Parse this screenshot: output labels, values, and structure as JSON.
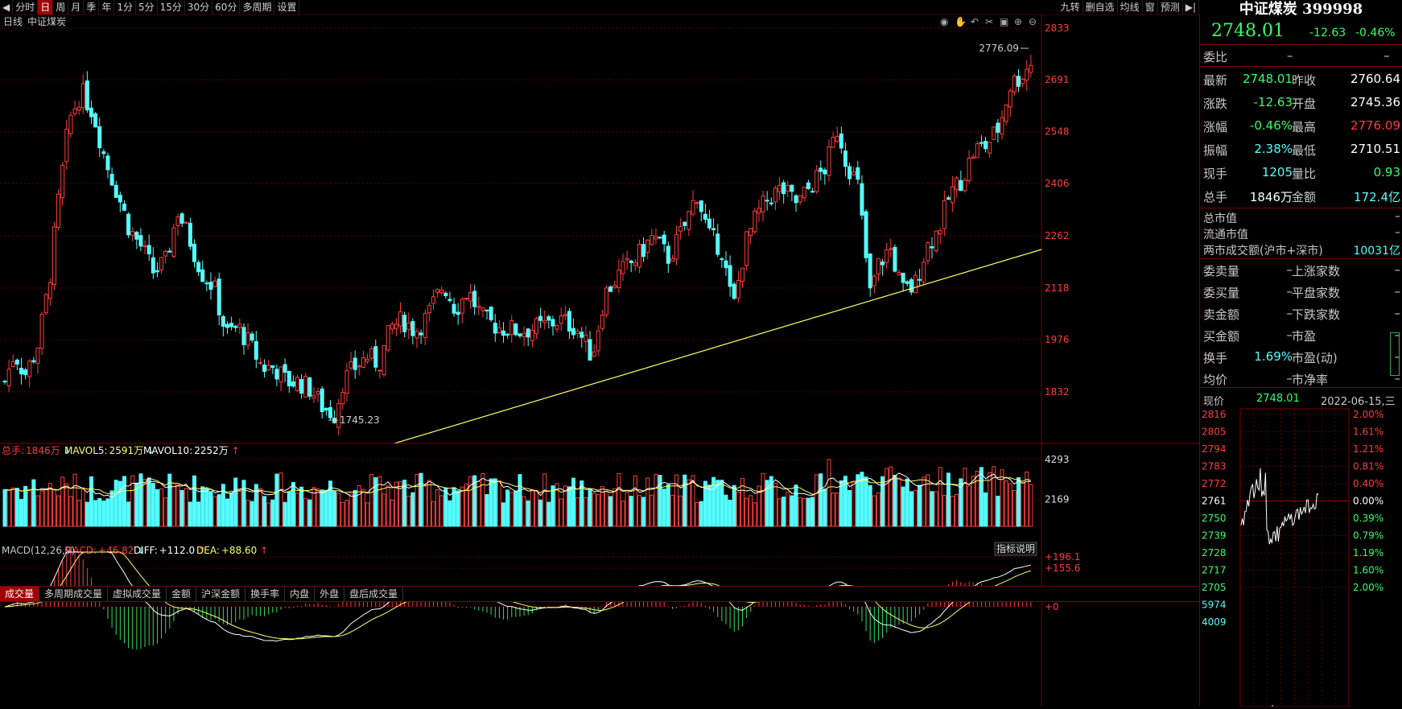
{
  "toolbar": {
    "left_items": [
      "分时",
      "日",
      "周",
      "月",
      "季",
      "年",
      "1分",
      "5分",
      "15分",
      "30分",
      "60分",
      "多周期",
      "设置"
    ],
    "active": "日",
    "right_items": [
      "九转",
      "删自选",
      "均线",
      "窗",
      "预测"
    ]
  },
  "chart_header": {
    "period": "日线",
    "name": "中证煤炭"
  },
  "price_axis": [
    "2833",
    "2691",
    "2548",
    "2406",
    "2262",
    "2118",
    "1976",
    "1832"
  ],
  "annotations": {
    "high": "2776.09",
    "low": "1745.23"
  },
  "volume_header": {
    "total_label": "总手:",
    "total_value": "1846万",
    "mavol5_label": "MAVOL5:",
    "mavol5_value": "2591万",
    "mavol10_label": "MAVOL10:",
    "mavol10_value": "2252万"
  },
  "volume_axis": [
    "4293",
    "2169"
  ],
  "indicator_tabs": [
    "成交量",
    "多周期成交量",
    "虚拟成交量",
    "金额",
    "沪深金额",
    "换手率",
    "内盘",
    "外盘",
    "盘后成交量"
  ],
  "macd_header": {
    "name": "MACD(12,26,9)",
    "macd_label": "MACD:",
    "macd_value": "+46.82",
    "diff_label": "DIFF:",
    "diff_value": "+112.0",
    "dea_label": "DEA:",
    "dea_value": "+88.60"
  },
  "macd_button": "指标说明",
  "macd_axis": [
    "+196.1",
    "+155.6",
    "+0"
  ],
  "colors": {
    "up": "#ff3b3b",
    "down": "#54ffff",
    "grid": "#5a0000",
    "ma5": "#ffffff",
    "ma10": "#ffff66",
    "trend": "#ffff66"
  },
  "quote": {
    "title": "中证煤炭 399998",
    "price": "2748.01",
    "change": "-12.63",
    "change_pct": "-0.46%",
    "weibi_label": "委比",
    "weibi_value": "–",
    "weibi_value2": "–",
    "rows": [
      {
        "l1": "最新",
        "v1": "2748.01",
        "l2": "昨收",
        "v2": "2760.64"
      },
      {
        "l1": "涨跌",
        "v1": "-12.63",
        "l2": "开盘",
        "v2": "2745.36"
      },
      {
        "l1": "涨幅",
        "v1": "-0.46%",
        "l2": "最高",
        "v2": "2776.09"
      },
      {
        "l1": "振幅",
        "v1": "2.38%",
        "l2": "最低",
        "v2": "2710.51"
      },
      {
        "l1": "现手",
        "v1": "1205",
        "l2": "量比",
        "v2": "0.93"
      },
      {
        "l1": "总手",
        "v1": "1846万",
        "l2": "金额",
        "v2": "172.4亿"
      }
    ],
    "market": [
      {
        "l": "总市值",
        "v": "–"
      },
      {
        "l": "流通市值",
        "v": "–"
      },
      {
        "l": "两市成交额(沪市+深市)",
        "v": "10031亿"
      }
    ],
    "orders": [
      {
        "l1": "委卖量",
        "v1": "–",
        "l2": "上涨家数",
        "v2": "–"
      },
      {
        "l1": "委买量",
        "v1": "–",
        "l2": "平盘家数",
        "v2": "–"
      },
      {
        "l1": "卖金额",
        "v1": "–",
        "l2": "下跌家数",
        "v2": "–"
      },
      {
        "l1": "买金额",
        "v1": "–",
        "l2": "市盈",
        "v2": "–"
      },
      {
        "l1": "换手",
        "v1": "1.69%",
        "l2": "市盈(动)",
        "v2": "–"
      },
      {
        "l1": "均价",
        "v1": "–",
        "l2": "市净率",
        "v2": "–"
      }
    ],
    "mini_header": {
      "label": "现价",
      "price": "2748.01",
      "date": "2022-06-15,三"
    },
    "mini_left_axis": [
      "2816",
      "2805",
      "2794",
      "2783",
      "2772",
      "2761",
      "2750",
      "2739",
      "2728",
      "2717",
      "2705",
      "5974",
      "4009"
    ],
    "mini_right_axis": [
      "2.00%",
      "1.61%",
      "1.21%",
      "0.81%",
      "0.40%",
      "0.00%",
      "0.39%",
      "0.79%",
      "1.19%",
      "1.60%",
      "2.00%"
    ]
  }
}
